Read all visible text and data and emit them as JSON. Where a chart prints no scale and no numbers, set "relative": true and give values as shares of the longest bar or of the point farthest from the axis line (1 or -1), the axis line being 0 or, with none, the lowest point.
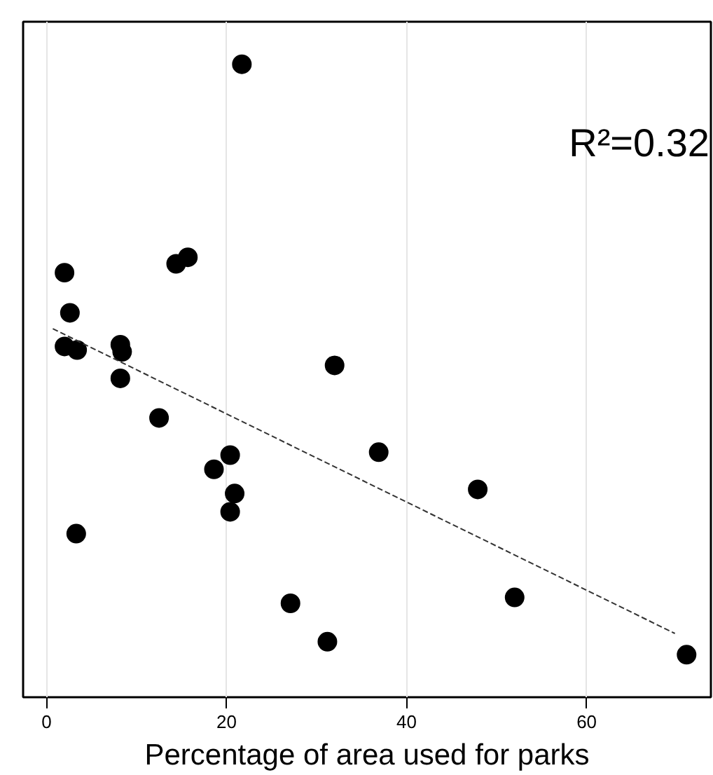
{
  "chart_data": {
    "type": "scatter",
    "relative": true,
    "xlabel": "Percentage of area used for parks",
    "xlim": [
      -2.6,
      73.8
    ],
    "xticks": [
      0,
      20,
      40,
      60
    ],
    "grid": "x",
    "marker": "circle",
    "annotations": [
      "R²=0.32"
    ],
    "series": [
      {
        "color": "#000000",
        "x": [
          2.0,
          2.6,
          2.0,
          3.4,
          3.3,
          8.2,
          8.4,
          8.2,
          12.5,
          14.4,
          15.7,
          21.7,
          18.6,
          20.4,
          20.9,
          20.4,
          27.1,
          32.0,
          31.2,
          36.9,
          47.9,
          52.0,
          71.1
        ],
        "values": [
          0.647,
          0.579,
          0.522,
          0.516,
          0.205,
          0.525,
          0.513,
          0.468,
          0.401,
          0.662,
          0.673,
          1,
          0.314,
          0.338,
          0.273,
          0.242,
          0.087,
          0.49,
          0.022,
          0.343,
          0.28,
          0.097,
          0
        ]
      },
      {
        "type": "line",
        "color": "#333333",
        "marker": "none",
        "line_style": "dashed",
        "x": [
          0.7,
          69.8
        ],
        "values": [
          0.552,
          0.036
        ]
      }
    ]
  }
}
